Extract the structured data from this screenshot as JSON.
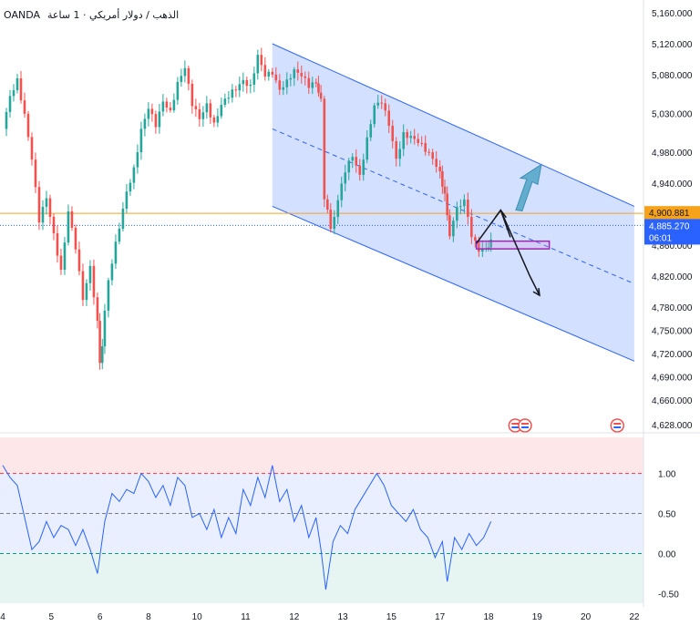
{
  "header": {
    "broker": "OANDA",
    "symbol_text": "الذهب / دولار أمريكي · 1 ساعة"
  },
  "chart_data": [
    {
      "type": "candlestick",
      "title": "",
      "y_axis": {
        "min": 4628,
        "max": 5160,
        "ticks": [
          "5,160.000",
          "5,120.000",
          "5,080.000",
          "5,030.000",
          "4,980.000",
          "4,940.000",
          "4,860.000",
          "4,820.000",
          "4,780.000",
          "4,750.000",
          "4,720.000",
          "4,690.000",
          "4,660.000",
          "4,628.000"
        ],
        "tick_values": [
          5160,
          5120,
          5080,
          5030,
          4980,
          4940,
          4860,
          4820,
          4780,
          4750,
          4720,
          4690,
          4660,
          4628
        ]
      },
      "x_axis": {
        "ticks": [
          "4",
          "5",
          "6",
          "8",
          "10",
          "11",
          "12",
          "13",
          "15",
          "17",
          "18",
          "19",
          "20",
          "22"
        ],
        "tick_positions": [
          0,
          1,
          2,
          3,
          4,
          5,
          6,
          7,
          8,
          9,
          10,
          11,
          12,
          13
        ]
      },
      "close_path": [
        [
          0.0,
          5010
        ],
        [
          0.15,
          5060
        ],
        [
          0.3,
          5080
        ],
        [
          0.45,
          5030
        ],
        [
          0.6,
          4970
        ],
        [
          0.75,
          4890
        ],
        [
          0.9,
          4920
        ],
        [
          1.05,
          4870
        ],
        [
          1.2,
          4820
        ],
        [
          1.35,
          4900
        ],
        [
          1.5,
          4860
        ],
        [
          1.65,
          4800
        ],
        [
          1.8,
          4840
        ],
        [
          1.95,
          4760
        ],
        [
          2.0,
          4700
        ],
        [
          2.1,
          4780
        ],
        [
          2.25,
          4830
        ],
        [
          2.4,
          4880
        ],
        [
          2.55,
          4930
        ],
        [
          2.7,
          4960
        ],
        [
          2.85,
          5010
        ],
        [
          3.0,
          5040
        ],
        [
          3.15,
          5020
        ],
        [
          3.3,
          5050
        ],
        [
          3.45,
          5030
        ],
        [
          3.6,
          5060
        ],
        [
          3.75,
          5080
        ],
        [
          3.9,
          5040
        ],
        [
          4.05,
          5030
        ],
        [
          4.2,
          5050
        ],
        [
          4.35,
          5020
        ],
        [
          4.5,
          5040
        ],
        [
          4.65,
          5050
        ],
        [
          4.8,
          5060
        ],
        [
          4.95,
          5070
        ],
        [
          5.1,
          5060
        ],
        [
          5.25,
          5100
        ],
        [
          5.4,
          5080
        ],
        [
          5.55,
          5090
        ],
        [
          5.7,
          5070
        ],
        [
          5.85,
          5075
        ],
        [
          6.0,
          5080
        ],
        [
          6.15,
          5070
        ],
        [
          6.3,
          5060
        ],
        [
          6.45,
          5070
        ],
        [
          6.55,
          5050
        ],
        [
          6.62,
          4920
        ],
        [
          6.75,
          4880
        ],
        [
          6.9,
          4920
        ],
        [
          7.05,
          4960
        ],
        [
          7.2,
          4980
        ],
        [
          7.35,
          4950
        ],
        [
          7.5,
          4990
        ],
        [
          7.65,
          5030
        ],
        [
          7.8,
          5040
        ],
        [
          7.95,
          5020
        ],
        [
          8.1,
          4980
        ],
        [
          8.25,
          5010
        ],
        [
          8.4,
          5000
        ],
        [
          8.55,
          4990
        ],
        [
          8.7,
          4980
        ],
        [
          8.85,
          4970
        ],
        [
          9.0,
          4950
        ],
        [
          9.1,
          4920
        ],
        [
          9.2,
          4880
        ],
        [
          9.35,
          4900
        ],
        [
          9.5,
          4910
        ],
        [
          9.65,
          4870
        ],
        [
          9.8,
          4860
        ],
        [
          9.95,
          4865
        ],
        [
          10.05,
          4870
        ]
      ],
      "last_price": "4,885.270",
      "countdown": "06:01",
      "horizontal_level": "4,900.881",
      "channel": {
        "upper": [
          [
            5.55,
            5120
          ],
          [
            13.0,
            4910
          ]
        ],
        "lower": [
          [
            5.55,
            4910
          ],
          [
            13.0,
            4710
          ]
        ],
        "midline": [
          [
            5.55,
            5010
          ],
          [
            13.0,
            4810
          ]
        ]
      },
      "zone": {
        "x": [
          9.75,
          11.25
        ],
        "y": [
          4865,
          4855
        ]
      },
      "projection_up": [
        [
          9.75,
          4862
        ],
        [
          10.25,
          4905
        ],
        [
          10.45,
          4870
        ]
      ],
      "projection_down": [
        [
          10.25,
          4905
        ],
        [
          10.85,
          4820
        ],
        [
          11.05,
          4795
        ]
      ],
      "colors": {
        "up": "#26a69a",
        "down": "#ef5350",
        "channel": "#2962ff",
        "level": "#f7a21b",
        "price_badge": "#2962ff"
      }
    },
    {
      "type": "line",
      "title": "",
      "y_axis": {
        "min": -0.62,
        "max": 1.45,
        "ticks": [
          "1.00",
          "0.50",
          "0.00",
          "-0.50"
        ],
        "tick_values": [
          1.0,
          0.5,
          0.0,
          -0.5
        ]
      },
      "levels": {
        "upper": 1.0,
        "middle": 0.5,
        "lower": 0.0
      },
      "series": [
        {
          "values": [
            [
              0.0,
              1.1
            ],
            [
              0.15,
              0.95
            ],
            [
              0.3,
              0.85
            ],
            [
              0.45,
              0.45
            ],
            [
              0.6,
              0.05
            ],
            [
              0.75,
              0.15
            ],
            [
              0.9,
              0.4
            ],
            [
              1.05,
              0.2
            ],
            [
              1.2,
              0.35
            ],
            [
              1.35,
              0.3
            ],
            [
              1.5,
              0.1
            ],
            [
              1.65,
              0.3
            ],
            [
              1.8,
              0.05
            ],
            [
              1.95,
              -0.25
            ],
            [
              2.1,
              0.4
            ],
            [
              2.25,
              0.75
            ],
            [
              2.4,
              0.65
            ],
            [
              2.55,
              0.8
            ],
            [
              2.7,
              0.75
            ],
            [
              2.85,
              1.0
            ],
            [
              3.0,
              0.9
            ],
            [
              3.15,
              0.7
            ],
            [
              3.3,
              0.85
            ],
            [
              3.45,
              0.6
            ],
            [
              3.6,
              0.95
            ],
            [
              3.75,
              0.85
            ],
            [
              3.9,
              0.45
            ],
            [
              4.05,
              0.5
            ],
            [
              4.2,
              0.3
            ],
            [
              4.35,
              0.55
            ],
            [
              4.5,
              0.2
            ],
            [
              4.65,
              0.45
            ],
            [
              4.8,
              0.25
            ],
            [
              4.95,
              0.8
            ],
            [
              5.1,
              0.6
            ],
            [
              5.25,
              0.95
            ],
            [
              5.4,
              0.7
            ],
            [
              5.55,
              1.1
            ],
            [
              5.7,
              0.65
            ],
            [
              5.85,
              0.8
            ],
            [
              6.0,
              0.4
            ],
            [
              6.15,
              0.6
            ],
            [
              6.3,
              0.2
            ],
            [
              6.45,
              0.45
            ],
            [
              6.55,
              0.05
            ],
            [
              6.65,
              -0.45
            ],
            [
              6.8,
              0.15
            ],
            [
              6.95,
              0.35
            ],
            [
              7.1,
              0.25
            ],
            [
              7.25,
              0.55
            ],
            [
              7.4,
              0.7
            ],
            [
              7.55,
              0.85
            ],
            [
              7.7,
              1.0
            ],
            [
              7.85,
              0.85
            ],
            [
              8.0,
              0.6
            ],
            [
              8.15,
              0.5
            ],
            [
              8.3,
              0.4
            ],
            [
              8.45,
              0.55
            ],
            [
              8.6,
              0.3
            ],
            [
              8.75,
              0.2
            ],
            [
              8.9,
              -0.05
            ],
            [
              9.05,
              0.15
            ],
            [
              9.15,
              -0.35
            ],
            [
              9.3,
              0.2
            ],
            [
              9.45,
              0.05
            ],
            [
              9.6,
              0.25
            ],
            [
              9.75,
              0.1
            ],
            [
              9.9,
              0.2
            ],
            [
              10.05,
              0.4
            ]
          ]
        }
      ],
      "colors": {
        "line": "#2962ff"
      }
    }
  ]
}
